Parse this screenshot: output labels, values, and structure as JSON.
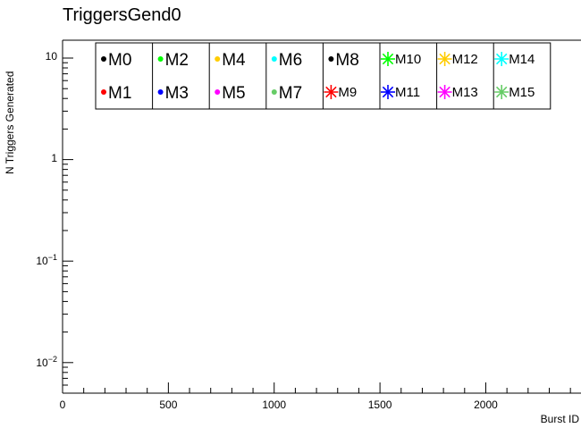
{
  "chart_data": {
    "type": "scatter",
    "title": "TriggersGend0",
    "xlabel": "Burst ID",
    "ylabel": "N Triggers Generated",
    "xlim": [
      0,
      2450
    ],
    "ylim": [
      0.005,
      15
    ],
    "yscale": "log",
    "xticks": [
      {
        "value": 0,
        "label": "0"
      },
      {
        "value": 500,
        "label": "500"
      },
      {
        "value": 1000,
        "label": "1000"
      },
      {
        "value": 1500,
        "label": "1500"
      },
      {
        "value": 2000,
        "label": "2000"
      }
    ],
    "yticks": [
      {
        "value": 10,
        "base": "10",
        "exp": ""
      },
      {
        "value": 1,
        "base": "1",
        "exp": ""
      },
      {
        "value": 0.1,
        "base": "10",
        "exp": "−1"
      },
      {
        "value": 0.01,
        "base": "10",
        "exp": "−2"
      }
    ],
    "legend_position": "top",
    "series": [
      {
        "name": "M0",
        "color": "#000000",
        "marker": "dot"
      },
      {
        "name": "M1",
        "color": "#ff0000",
        "marker": "dot"
      },
      {
        "name": "M2",
        "color": "#00ff00",
        "marker": "dot"
      },
      {
        "name": "M3",
        "color": "#0000ff",
        "marker": "dot"
      },
      {
        "name": "M4",
        "color": "#ffcc00",
        "marker": "dot"
      },
      {
        "name": "M5",
        "color": "#ff00ff",
        "marker": "dot"
      },
      {
        "name": "M6",
        "color": "#00ffff",
        "marker": "dot"
      },
      {
        "name": "M7",
        "color": "#66cc66",
        "marker": "dot"
      },
      {
        "name": "M8",
        "color": "#000000",
        "marker": "dot"
      },
      {
        "name": "M9",
        "color": "#ff0000",
        "marker": "star"
      },
      {
        "name": "M10",
        "color": "#00ff00",
        "marker": "star"
      },
      {
        "name": "M11",
        "color": "#0000ff",
        "marker": "star"
      },
      {
        "name": "M12",
        "color": "#ffcc00",
        "marker": "star"
      },
      {
        "name": "M13",
        "color": "#ff00ff",
        "marker": "star"
      },
      {
        "name": "M14",
        "color": "#00ffff",
        "marker": "star"
      },
      {
        "name": "M15",
        "color": "#66cc66",
        "marker": "star"
      }
    ]
  }
}
